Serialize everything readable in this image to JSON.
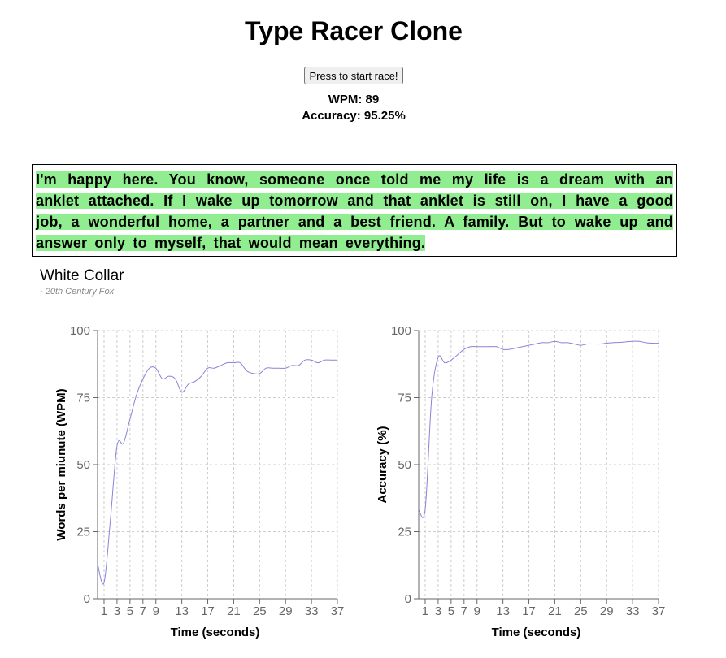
{
  "page": {
    "title": "Type Racer Clone",
    "start_button": "Press to start race!",
    "wpm_text": "WPM: 89",
    "accuracy_text": "Accuracy: 95.25%"
  },
  "passage": {
    "text": "I'm happy here. You know, someone once told me my life is a dream with an anklet attached. If I wake up tomorrow and that anklet is still on, I have a good job, a wonderful home, a partner and a best friend. A family. But to wake up and answer only to myself, that would mean everything."
  },
  "movie": {
    "title": "White Collar",
    "studio": "- 20th Century Fox"
  },
  "chart_data": [
    {
      "type": "line",
      "xlabel": "Time (seconds)",
      "ylabel": "Words per miunute (WPM)",
      "xlim": [
        0,
        37
      ],
      "ylim": [
        0,
        100
      ],
      "x_ticks": [
        1,
        3,
        5,
        7,
        9,
        13,
        17,
        21,
        25,
        29,
        33,
        37
      ],
      "y_ticks": [
        0,
        25,
        50,
        75,
        100
      ],
      "grid": true,
      "line_color": "#8884d8",
      "series": [
        {
          "x": [
            0,
            1,
            2,
            3,
            4,
            5,
            6,
            7,
            8,
            9,
            10,
            11,
            12,
            13,
            14,
            15,
            16,
            17,
            18,
            19,
            20,
            21,
            22,
            23,
            24,
            25,
            26,
            27,
            28,
            29,
            30,
            31,
            32,
            33,
            34,
            35,
            36,
            37
          ],
          "y": [
            13,
            6,
            30,
            57,
            58,
            67,
            76,
            82,
            86,
            86,
            82,
            83,
            82,
            77,
            80,
            81,
            83,
            86,
            86,
            87,
            88,
            88,
            88,
            85,
            84,
            84,
            86,
            86,
            86,
            86,
            87,
            87,
            89,
            89,
            88,
            89,
            89,
            89
          ]
        }
      ]
    },
    {
      "type": "line",
      "xlabel": "Time (seconds)",
      "ylabel": "Accuracy (%)",
      "xlim": [
        0,
        37
      ],
      "ylim": [
        0,
        100
      ],
      "x_ticks": [
        1,
        3,
        5,
        7,
        9,
        13,
        17,
        21,
        25,
        29,
        33,
        37
      ],
      "y_ticks": [
        0,
        25,
        50,
        75,
        100
      ],
      "grid": true,
      "line_color": "#8884d8",
      "series": [
        {
          "x": [
            0,
            1,
            2,
            3,
            4,
            5,
            6,
            7,
            8,
            9,
            10,
            11,
            12,
            13,
            14,
            15,
            16,
            17,
            18,
            19,
            20,
            21,
            22,
            23,
            24,
            25,
            26,
            27,
            28,
            29,
            30,
            31,
            32,
            33,
            34,
            35,
            36,
            37
          ],
          "y": [
            33.3,
            33.3,
            75,
            90,
            88,
            89,
            91,
            93,
            94,
            94,
            94,
            94,
            94,
            93,
            93,
            93.5,
            94,
            94.5,
            95,
            95.5,
            95.5,
            96,
            95.5,
            95.5,
            95,
            94.5,
            95,
            95,
            95,
            95.3,
            95.5,
            95.6,
            95.8,
            96,
            96,
            95.5,
            95.3,
            95.25
          ]
        }
      ]
    }
  ]
}
